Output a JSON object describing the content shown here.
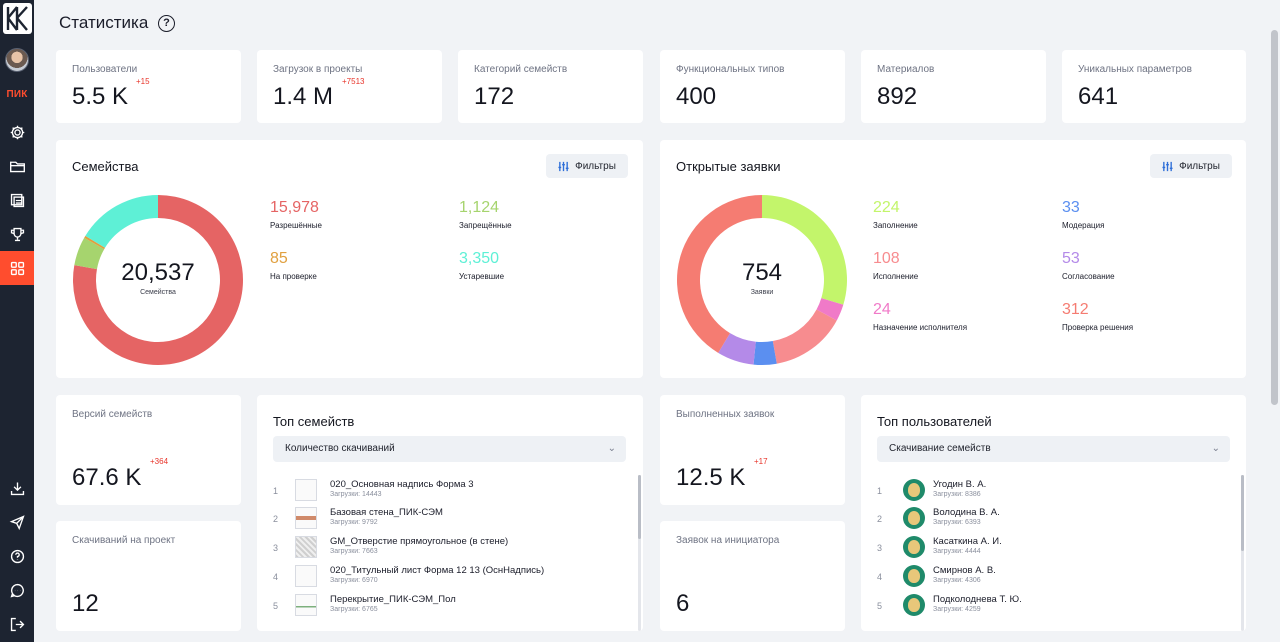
{
  "page": {
    "title": "Статистика",
    "help": "?"
  },
  "sidebar": {
    "brand": "ПИК",
    "items": [
      {
        "name": "settings",
        "icon": "gear-icon"
      },
      {
        "name": "folder",
        "icon": "folder-icon"
      },
      {
        "name": "documents",
        "icon": "documents-icon"
      },
      {
        "name": "awards",
        "icon": "trophy-icon"
      },
      {
        "name": "statistics",
        "icon": "grid-icon",
        "active": true
      },
      {
        "name": "download",
        "icon": "download-icon"
      },
      {
        "name": "send",
        "icon": "send-icon"
      },
      {
        "name": "help",
        "icon": "help-icon"
      },
      {
        "name": "chat",
        "icon": "chat-icon"
      },
      {
        "name": "logout",
        "icon": "logout-icon"
      }
    ]
  },
  "stats": [
    {
      "label": "Пользователи",
      "value": "5.5 K",
      "delta": "+15"
    },
    {
      "label": "Загрузок в проекты",
      "value": "1.4 M",
      "delta": "+7513"
    },
    {
      "label": "Категорий семейств",
      "value": "172",
      "delta": ""
    },
    {
      "label": "Функциональных типов",
      "value": "400",
      "delta": ""
    },
    {
      "label": "Материалов",
      "value": "892",
      "delta": ""
    },
    {
      "label": "Уникальных параметров",
      "value": "641",
      "delta": ""
    }
  ],
  "families": {
    "title": "Семейства",
    "filter_label": "Фильтры",
    "total": "20,537",
    "total_label": "Семейства",
    "legend": [
      {
        "value": "15,978",
        "label": "Разрешённые",
        "color": "#e56464"
      },
      {
        "value": "1,124",
        "label": "Запрещённые",
        "color": "#a6d46e"
      },
      {
        "value": "85",
        "label": "На проверке",
        "color": "#e0a040"
      },
      {
        "value": "3,350",
        "label": "Устаревшие",
        "color": "#5ef0d6"
      }
    ],
    "chart_data": {
      "type": "pie",
      "categories": [
        "Разрешённые",
        "Запрещённые",
        "На проверке",
        "Устаревшие"
      ],
      "values": [
        15978,
        1124,
        85,
        3350
      ]
    }
  },
  "requests": {
    "title": "Открытые заявки",
    "filter_label": "Фильтры",
    "total": "754",
    "total_label": "Заявки",
    "legend": [
      {
        "value": "224",
        "label": "Заполнение",
        "color": "#c3f56b"
      },
      {
        "value": "33",
        "label": "Модерация",
        "color": "#5b8ff0"
      },
      {
        "value": "108",
        "label": "Исполнение",
        "color": "#f78c8f"
      },
      {
        "value": "53",
        "label": "Согласование",
        "color": "#b48ae8"
      },
      {
        "value": "24",
        "label": "Назначение исполнителя",
        "color": "#f07ac8"
      },
      {
        "value": "312",
        "label": "Проверка решения",
        "color": "#f57c72"
      }
    ],
    "chart_data": {
      "type": "pie",
      "categories": [
        "Заполнение",
        "Назначение исполнителя",
        "Исполнение",
        "Модерация",
        "Согласование",
        "Проверка решения"
      ],
      "values": [
        224,
        24,
        108,
        33,
        53,
        312
      ]
    }
  },
  "small_cards": [
    {
      "label": "Версий семейств",
      "value": "67.6 K",
      "delta": "+364"
    },
    {
      "label": "Скачиваний на проект",
      "value": "12",
      "delta": ""
    },
    {
      "label": "Выполненных заявок",
      "value": "12.5 K",
      "delta": "+17"
    },
    {
      "label": "Заявок на инициатора",
      "value": "6",
      "delta": ""
    }
  ],
  "top_families": {
    "title": "Топ семейств",
    "select_value": "Количество скачиваний",
    "rows": [
      {
        "num": "1",
        "name": "020_Основная надпись Форма 3",
        "sub": "Загрузки: 14443"
      },
      {
        "num": "2",
        "name": "Базовая стена_ПИК-СЭМ",
        "sub": "Загрузки: 9792"
      },
      {
        "num": "3",
        "name": "GM_Отверстие прямоугольное (в стене)",
        "sub": "Загрузки: 7663"
      },
      {
        "num": "4",
        "name": "020_Титульный лист Форма 12 13 (ОснНадпись)",
        "sub": "Загрузки: 6970"
      },
      {
        "num": "5",
        "name": "Перекрытие_ПИК-СЭМ_Пол",
        "sub": "Загрузки: 6765"
      }
    ]
  },
  "top_users": {
    "title": "Топ пользователей",
    "select_value": "Скачивание семейств",
    "rows": [
      {
        "num": "1",
        "name": "Угодин В. А.",
        "sub": "Загрузки: 8386"
      },
      {
        "num": "2",
        "name": "Володина В. А.",
        "sub": "Загрузки: 6393"
      },
      {
        "num": "3",
        "name": "Касаткина А. И.",
        "sub": "Загрузки: 4444"
      },
      {
        "num": "4",
        "name": "Смирнов А. В.",
        "sub": "Загрузки: 4306"
      },
      {
        "num": "5",
        "name": "Подколоднева Т. Ю.",
        "sub": "Загрузки: 4259"
      }
    ]
  }
}
